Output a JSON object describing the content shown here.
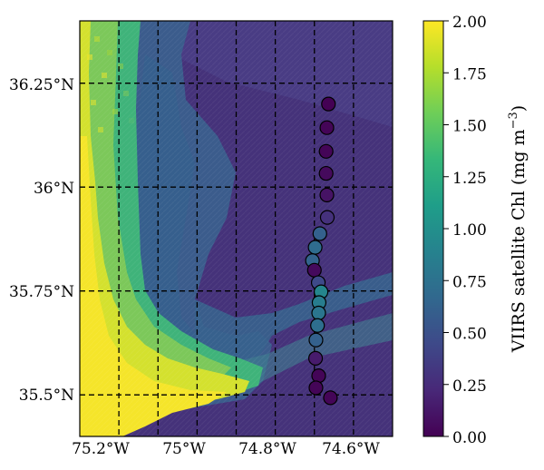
{
  "map": {
    "lat_labels": [
      "36.25°N",
      "36°N",
      "35.75°N",
      "35.5°N"
    ],
    "lon_labels": [
      "75.2°W",
      "75°W",
      "74.8°W",
      "74.6°W"
    ],
    "lat_ticks": [
      36.25,
      36.0,
      35.75,
      35.5
    ],
    "lon_ticks": [
      -75.2,
      -75.0,
      -74.8,
      -74.6
    ],
    "extent": {
      "lon": [
        -75.3,
        -74.5
      ],
      "lat": [
        35.4,
        36.4
      ]
    },
    "gridlines": {
      "lon": [
        -75.2,
        -75.1,
        -75.0,
        -74.9,
        -74.8,
        -74.7,
        -74.6
      ],
      "lat": [
        36.25,
        36.0,
        35.75,
        35.5
      ]
    },
    "gridline_style": "dashed black"
  },
  "colorbar": {
    "label": "VIIRS satellite Chl (mg m",
    "label_sup": "−3",
    "label_end": ")",
    "tick_labels": [
      "0.00",
      "0.25",
      "0.50",
      "0.75",
      "1.00",
      "1.25",
      "1.50",
      "1.75",
      "2.00"
    ],
    "tick_values": [
      0.0,
      0.25,
      0.5,
      0.75,
      1.0,
      1.25,
      1.5,
      1.75,
      2.0
    ],
    "range": [
      0,
      2.0
    ],
    "colormap": "viridis",
    "colors": [
      "#440154",
      "#482878",
      "#3e4989",
      "#31688e",
      "#26828e",
      "#1f9e89",
      "#35b779",
      "#6ece58",
      "#b5de2b",
      "#fde725"
    ]
  },
  "samples": [
    {
      "lon": -74.664,
      "lat": 36.2,
      "chl": 0.0
    },
    {
      "lon": -74.668,
      "lat": 36.143,
      "chl": 0.02
    },
    {
      "lon": -74.67,
      "lat": 36.086,
      "chl": 0.02
    },
    {
      "lon": -74.67,
      "lat": 36.033,
      "chl": 0.05
    },
    {
      "lon": -74.668,
      "lat": 35.981,
      "chl": 0.1
    },
    {
      "lon": -74.667,
      "lat": 35.927,
      "chl": 0.28
    },
    {
      "lon": -74.686,
      "lat": 35.888,
      "chl": 0.62
    },
    {
      "lon": -74.698,
      "lat": 35.855,
      "chl": 0.7
    },
    {
      "lon": -74.705,
      "lat": 35.823,
      "chl": 0.64
    },
    {
      "lon": -74.7,
      "lat": 35.8,
      "chl": 0.05
    },
    {
      "lon": -74.69,
      "lat": 35.77,
      "chl": 0.45
    },
    {
      "lon": -74.683,
      "lat": 35.748,
      "chl": 0.92
    },
    {
      "lon": -74.688,
      "lat": 35.722,
      "chl": 0.85
    },
    {
      "lon": -74.689,
      "lat": 35.697,
      "chl": 0.78
    },
    {
      "lon": -74.692,
      "lat": 35.667,
      "chl": 0.72
    },
    {
      "lon": -74.696,
      "lat": 35.632,
      "chl": 0.62
    },
    {
      "lon": -74.697,
      "lat": 35.588,
      "chl": 0.15
    },
    {
      "lon": -74.689,
      "lat": 35.546,
      "chl": 0.02
    },
    {
      "lon": -74.696,
      "lat": 35.517,
      "chl": 0.02
    },
    {
      "lon": -74.659,
      "lat": 35.493,
      "chl": 0.02
    }
  ]
}
